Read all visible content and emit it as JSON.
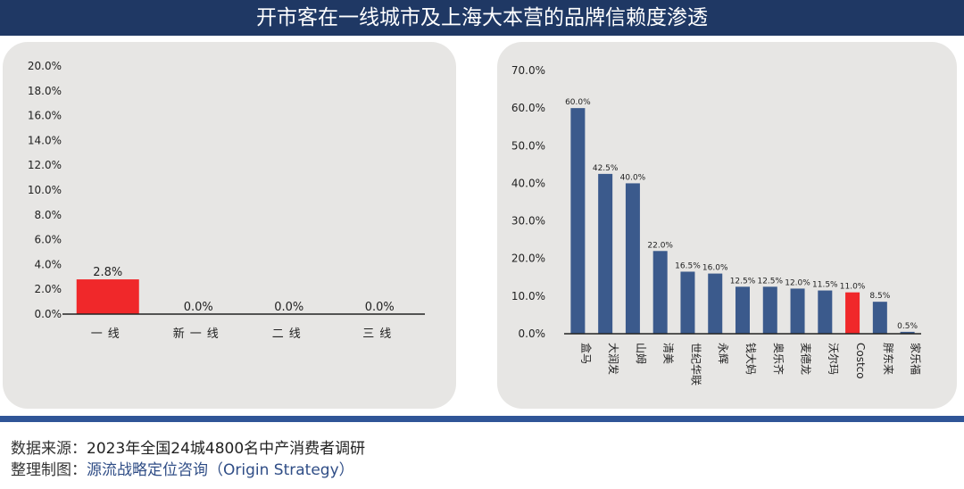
{
  "title": "开市客在一线城市及上海大本营的品牌信赖度渗透",
  "chart_data": [
    {
      "type": "bar",
      "title": "",
      "categories": [
        "一线",
        "新一线",
        "二线",
        "三线"
      ],
      "values": [
        2.8,
        0.0,
        0.0,
        0.0
      ],
      "labels": [
        "2.8%",
        "0.0%",
        "0.0%",
        "0.0%"
      ],
      "ylim": [
        0,
        20
      ],
      "yticks": [
        "0.0%",
        "2.0%",
        "4.0%",
        "6.0%",
        "8.0%",
        "10.0%",
        "12.0%",
        "14.0%",
        "16.0%",
        "18.0%",
        "20.0%"
      ],
      "highlight_color": "#f0282a",
      "bar_color": "#f0282a"
    },
    {
      "type": "bar",
      "title": "",
      "categories": [
        "盒马",
        "大润发",
        "山姆",
        "清美",
        "世纪华联",
        "永辉",
        "钱大妈",
        "奥乐齐",
        "麦德龙",
        "沃尔玛",
        "Costco",
        "胖东来",
        "家乐福"
      ],
      "values": [
        60.0,
        42.5,
        40.0,
        22.0,
        16.5,
        16.0,
        12.5,
        12.5,
        12.0,
        11.5,
        11.0,
        8.5,
        0.5
      ],
      "labels": [
        "60.0%",
        "42.5%",
        "40.0%",
        "22.0%",
        "16.5%",
        "16.0%",
        "12.5%",
        "12.5%",
        "12.0%",
        "11.5%",
        "11.0%",
        "8.5%",
        "0.5%"
      ],
      "ylim": [
        0,
        70
      ],
      "yticks": [
        "0.0%",
        "10.0%",
        "20.0%",
        "30.0%",
        "40.0%",
        "50.0%",
        "60.0%",
        "70.0%"
      ],
      "bar_color": "#3b5a8c",
      "highlight": "Costco",
      "highlight_color": "#f0282a"
    }
  ],
  "footer": {
    "source_label": "数据来源：",
    "source_value": "2023年全国24城4800名中产消费者调研",
    "maker_label": "整理制图：",
    "maker_value": "源流战略定位咨询（Origin Strategy）"
  }
}
